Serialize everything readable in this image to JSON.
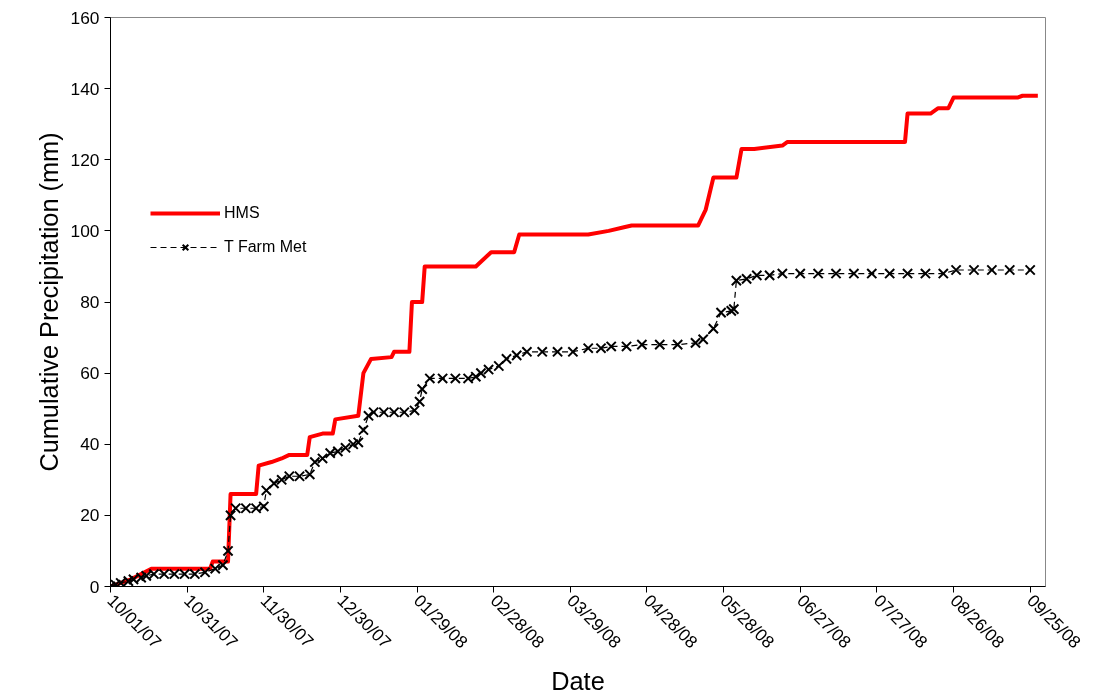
{
  "chart_data": {
    "type": "line",
    "xlabel": "Date",
    "ylabel": "Cumulative Precipitation (mm)",
    "xlim": [
      "2007-10-01",
      "2008-10-01"
    ],
    "xticks": [
      {
        "value": "2007-10-01",
        "label": "10/01/07"
      },
      {
        "value": "2007-10-31",
        "label": "10/31/07"
      },
      {
        "value": "2007-11-30",
        "label": "11/30/07"
      },
      {
        "value": "2007-12-30",
        "label": "12/30/07"
      },
      {
        "value": "2008-01-29",
        "label": "01/29/08"
      },
      {
        "value": "2008-02-28",
        "label": "02/28/08"
      },
      {
        "value": "2008-03-29",
        "label": "03/29/08"
      },
      {
        "value": "2008-04-28",
        "label": "04/28/08"
      },
      {
        "value": "2008-05-28",
        "label": "05/28/08"
      },
      {
        "value": "2008-06-27",
        "label": "06/27/08"
      },
      {
        "value": "2008-07-27",
        "label": "07/27/08"
      },
      {
        "value": "2008-08-26",
        "label": "08/26/08"
      },
      {
        "value": "2008-09-25",
        "label": "09/25/08"
      }
    ],
    "ylim": [
      0,
      160
    ],
    "yticks": [
      0,
      20,
      40,
      60,
      80,
      100,
      120,
      140,
      160
    ],
    "grid": false,
    "legend": "top left",
    "series": [
      {
        "name": "HMS",
        "color": "#ff0000",
        "line_style": "solid",
        "marker": "none",
        "x": [
          "2007-10-01",
          "2007-10-09",
          "2007-10-17",
          "2007-11-09",
          "2007-11-10",
          "2007-11-16",
          "2007-11-17",
          "2007-11-27",
          "2007-11-28",
          "2007-12-03",
          "2007-12-07",
          "2007-12-10",
          "2007-12-17",
          "2007-12-18",
          "2007-12-23",
          "2007-12-27",
          "2007-12-28",
          "2008-01-06",
          "2008-01-08",
          "2008-01-11",
          "2008-01-19",
          "2008-01-20",
          "2008-01-26",
          "2008-01-27",
          "2008-01-31",
          "2008-02-01",
          "2008-02-21",
          "2008-02-27",
          "2008-03-07",
          "2008-03-09",
          "2008-04-05",
          "2008-04-13",
          "2008-04-19",
          "2008-04-22",
          "2008-05-18",
          "2008-05-21",
          "2008-05-24",
          "2008-06-02",
          "2008-06-04",
          "2008-06-09",
          "2008-06-20",
          "2008-06-22",
          "2008-08-07",
          "2008-08-08",
          "2008-08-17",
          "2008-08-20",
          "2008-08-24",
          "2008-08-26",
          "2008-09-20",
          "2008-09-22",
          "2008-09-28"
        ],
        "values": [
          0,
          2,
          5,
          5,
          7,
          7,
          26,
          26,
          34,
          35,
          36,
          37,
          37,
          42,
          43,
          43,
          47,
          48,
          60,
          64,
          64.5,
          66,
          66,
          80,
          80,
          90,
          90,
          94,
          94,
          99,
          99,
          100,
          101,
          101.5,
          101.5,
          106,
          115,
          115,
          123,
          123,
          124,
          125,
          125,
          133,
          133,
          134.5,
          134.5,
          137.5,
          137.5,
          138,
          138
        ]
      },
      {
        "name": "T Farm Met",
        "color": "#000000",
        "line_style": "dashed",
        "marker": "cross",
        "x": [
          "2007-10-01",
          "2007-10-03",
          "2007-10-05",
          "2007-10-08",
          "2007-10-10",
          "2007-10-13",
          "2007-10-15",
          "2007-10-18",
          "2007-10-22",
          "2007-10-26",
          "2007-10-30",
          "2007-11-03",
          "2007-11-07",
          "2007-11-11",
          "2007-11-14",
          "2007-11-16",
          "2007-11-17",
          "2007-11-19",
          "2007-11-23",
          "2007-11-27",
          "2007-11-30",
          "2007-12-01",
          "2007-12-04",
          "2007-12-07",
          "2007-12-10",
          "2007-12-14",
          "2007-12-18",
          "2007-12-20",
          "2007-12-23",
          "2007-12-26",
          "2007-12-29",
          "2008-01-01",
          "2008-01-04",
          "2008-01-06",
          "2008-01-08",
          "2008-01-10",
          "2008-01-12",
          "2008-01-16",
          "2008-01-20",
          "2008-01-24",
          "2008-01-28",
          "2008-01-30",
          "2008-01-31",
          "2008-02-03",
          "2008-02-08",
          "2008-02-13",
          "2008-02-18",
          "2008-02-21",
          "2008-02-23",
          "2008-02-26",
          "2008-03-01",
          "2008-03-04",
          "2008-03-08",
          "2008-03-12",
          "2008-03-18",
          "2008-03-24",
          "2008-03-30",
          "2008-04-05",
          "2008-04-10",
          "2008-04-14",
          "2008-04-20",
          "2008-04-26",
          "2008-05-03",
          "2008-05-10",
          "2008-05-17",
          "2008-05-20",
          "2008-05-24",
          "2008-05-27",
          "2008-05-31",
          "2008-06-01",
          "2008-06-02",
          "2008-06-06",
          "2008-06-10",
          "2008-06-15",
          "2008-06-20",
          "2008-06-27",
          "2008-07-04",
          "2008-07-11",
          "2008-07-18",
          "2008-07-25",
          "2008-08-01",
          "2008-08-08",
          "2008-08-15",
          "2008-08-22",
          "2008-08-27",
          "2008-09-03",
          "2008-09-10",
          "2008-09-17",
          "2008-09-25"
        ],
        "values": [
          0,
          0.5,
          1,
          1.5,
          2,
          2.5,
          3,
          3.5,
          3.5,
          3.5,
          3.5,
          3.5,
          4,
          5,
          6,
          10,
          20,
          22,
          22,
          22,
          22.5,
          27,
          29,
          30,
          31,
          31,
          31.5,
          35,
          36,
          37.5,
          38,
          39,
          40,
          40.5,
          44,
          48,
          49,
          49,
          49,
          49,
          49.5,
          52,
          55.5,
          58.5,
          58.5,
          58.5,
          58.5,
          59,
          60,
          61,
          62,
          64,
          65,
          66,
          66,
          66,
          66,
          67,
          67,
          67.5,
          67.5,
          68,
          68,
          68,
          68.5,
          69.5,
          72.5,
          77,
          77.5,
          78,
          86,
          86.5,
          87.5,
          87.5,
          88,
          88,
          88,
          88,
          88,
          88,
          88,
          88,
          88,
          88,
          89,
          89,
          89,
          89,
          89
        ]
      }
    ]
  }
}
